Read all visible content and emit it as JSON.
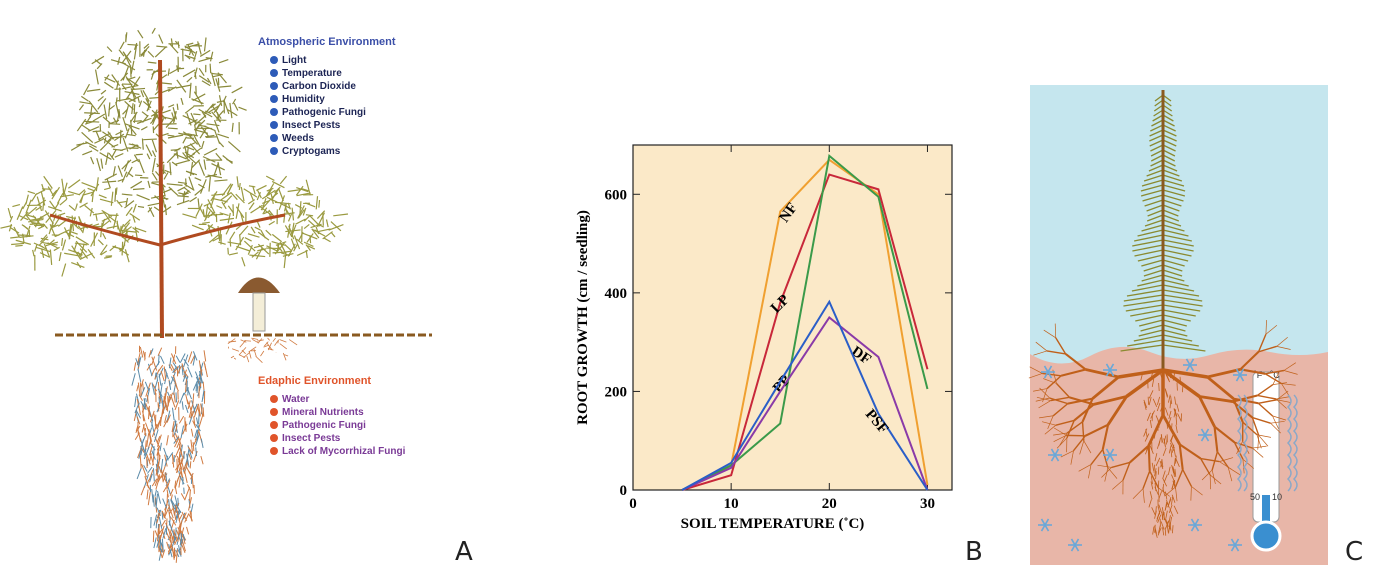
{
  "panel_a": {
    "atmospheric_title": "Atmospheric Environment",
    "atmospheric_items": [
      "Light",
      "Temperature",
      "Carbon Dioxide",
      "Humidity",
      "Pathogenic Fungi",
      "Insect Pests",
      "Weeds",
      "Cryptogams"
    ],
    "edaphic_title": "Edaphic Environment",
    "edaphic_items": [
      "Water",
      "Mineral Nutrients",
      "Pathogenic Fungi",
      "Insect Pests",
      "Lack of Mycorrhizal Fungi"
    ],
    "label": "A"
  },
  "chart_data": {
    "type": "line",
    "x_label": "SOIL TEMPERATURE (˚C)",
    "y_label": "ROOT GROWTH (cm / seedling)",
    "x": [
      5,
      10,
      15,
      20,
      25,
      30
    ],
    "series": [
      {
        "name": "NF",
        "color": "#f0a030",
        "values": [
          0,
          50,
          565,
          670,
          600,
          10
        ]
      },
      {
        "name": "LP",
        "color": "#c8283a",
        "values": [
          0,
          30,
          380,
          640,
          610,
          245
        ]
      },
      {
        "name": "PP",
        "color": "#3a9a4a",
        "values": [
          0,
          50,
          135,
          678,
          595,
          205
        ]
      },
      {
        "name": "DF",
        "color": "#8a3aa8",
        "values": [
          0,
          45,
          200,
          350,
          270,
          0
        ]
      },
      {
        "name": "PSF",
        "color": "#2a5ec8",
        "values": [
          0,
          55,
          220,
          382,
          155,
          0
        ]
      }
    ],
    "xlim": [
      0,
      32.5
    ],
    "xticks": [
      0,
      10,
      20,
      30
    ],
    "ylim": [
      0,
      700
    ],
    "yticks": [
      0,
      200,
      400,
      600
    ],
    "background": "#fbe9c8",
    "label": "B"
  },
  "panel_c": {
    "thermometer_units": [
      "˚F",
      "˚C"
    ],
    "thermometer_marks": [
      "50",
      "10"
    ],
    "label": "C"
  }
}
